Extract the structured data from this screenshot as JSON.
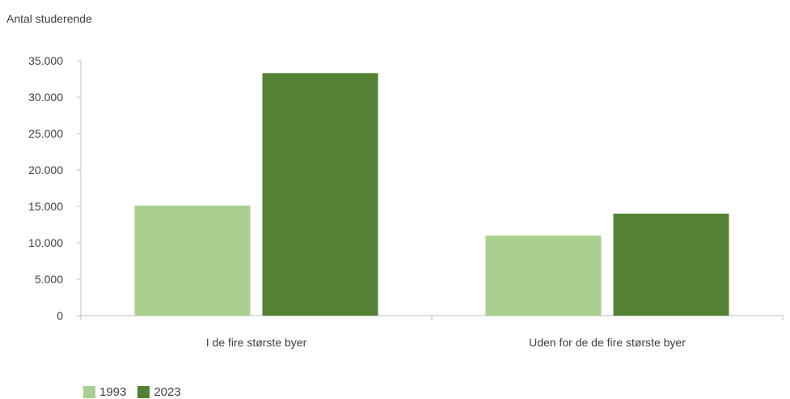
{
  "chart_data": {
    "type": "bar",
    "ylabel": "Antal studerende",
    "categories": [
      "I de fire største byer",
      "Uden for de de fire største byer"
    ],
    "series": [
      {
        "name": "1993",
        "values": [
          15100,
          11000
        ],
        "color": "#a9d08e"
      },
      {
        "name": "2023",
        "values": [
          33300,
          14000
        ],
        "color": "#548235"
      }
    ],
    "ylim": [
      0,
      35000
    ],
    "yticks": [
      "0",
      "5.000",
      "10.000",
      "15.000",
      "20.000",
      "25.000",
      "30.000",
      "35.000"
    ],
    "ytick_values": [
      0,
      5000,
      10000,
      15000,
      20000,
      25000,
      30000,
      35000
    ],
    "grid": false,
    "legend_position": "bottom-left"
  }
}
